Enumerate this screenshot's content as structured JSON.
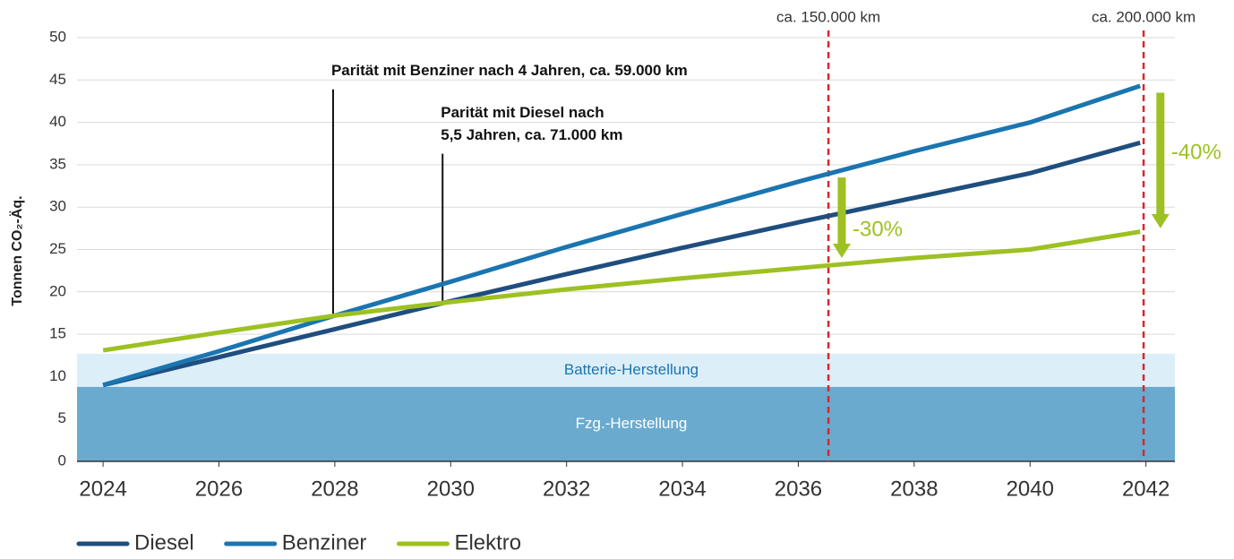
{
  "chart_data": {
    "type": "line",
    "y_axis_label": "Tonnen CO₂-Äq.",
    "x": [
      2024,
      2026,
      2028,
      2030,
      2032,
      2034,
      2036,
      2038,
      2040,
      2041.9
    ],
    "series": [
      {
        "name": "Diesel",
        "color": "#1f4e7e",
        "values": [
          9,
          12.3,
          15.6,
          18.9,
          22.1,
          25.2,
          28.2,
          31.1,
          34,
          37.6
        ]
      },
      {
        "name": "Benziner",
        "color": "#1a75b0",
        "values": [
          9,
          13,
          17.2,
          21.2,
          25.3,
          29.2,
          33,
          36.6,
          40,
          44.3
        ]
      },
      {
        "name": "Elektro",
        "color": "#9dc122",
        "values": [
          13.1,
          15.2,
          17.2,
          18.8,
          20.3,
          21.6,
          22.8,
          24,
          25,
          27.1
        ]
      }
    ],
    "xlim": [
      2023.55,
      2042.5
    ],
    "xticks": [
      2024,
      2026,
      2028,
      2030,
      2032,
      2034,
      2036,
      2038,
      2040,
      2042
    ],
    "ylim": [
      0,
      50
    ],
    "yticks": [
      0,
      5,
      10,
      15,
      20,
      25,
      30,
      35,
      40,
      45,
      50
    ],
    "grid": true,
    "bands": [
      {
        "label": "Fzg.-Herstellung",
        "from": 0,
        "to": 8.8,
        "color": "#6aaacf",
        "text_color": "#ffffff"
      },
      {
        "label": "Batterie-Herstellung",
        "from": 8.8,
        "to": 12.7,
        "color": "#dceef8",
        "text_color": "#1a75b0"
      }
    ],
    "vlines": [
      {
        "x": 2036.52,
        "label": "ca. 150.000 km",
        "color": "#d9262c"
      },
      {
        "x": 2041.96,
        "label": "ca. 200.000 km",
        "color": "#d9262c"
      }
    ],
    "annotations": [
      {
        "x": 2027.97,
        "top": 43.9,
        "bottom": 17.3,
        "lines": [
          "Parität mit Benziner nach 4 Jahren, ca. 59.000 km"
        ]
      },
      {
        "x": 2029.86,
        "top": 36.3,
        "bottom": 18.8,
        "lines": [
          "Parität mit Diesel nach",
          "5,5 Jahren, ca. 71.000 km"
        ]
      }
    ],
    "arrows": [
      {
        "x": 2036.75,
        "from": 33.5,
        "to": 24,
        "label": "-30%",
        "color": "#9dc122"
      },
      {
        "x": 2042.25,
        "from": 43.5,
        "to": 27.5,
        "label": "-40%",
        "color": "#9dc122"
      }
    ]
  }
}
